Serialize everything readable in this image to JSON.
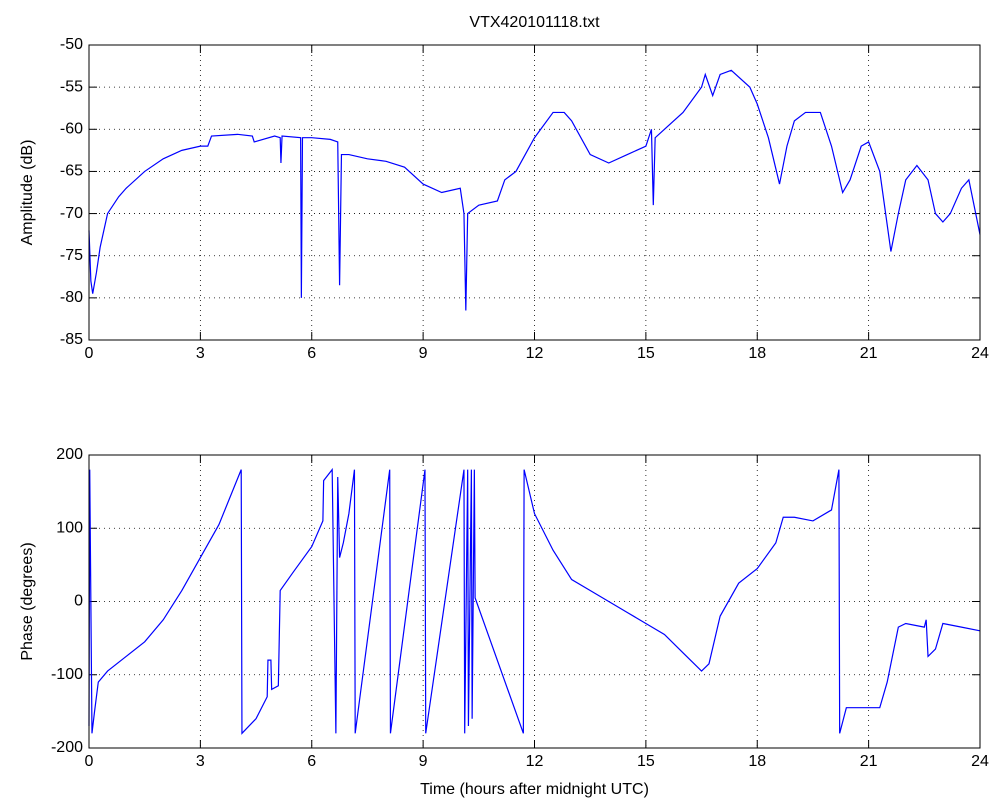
{
  "chart_data": [
    {
      "type": "line",
      "title": "VTX420101118.txt",
      "y_label": "Amplitude (dB)",
      "x": [
        0,
        0.05,
        0.1,
        0.2,
        0.3,
        0.5,
        0.8,
        1,
        1.5,
        2,
        2.5,
        3,
        3.2,
        3.3,
        4,
        4.4,
        4.45,
        5,
        5.15,
        5.17,
        5.2,
        5.7,
        5.72,
        5.75,
        6,
        6.5,
        6.7,
        6.75,
        6.8,
        7,
        7.5,
        8,
        8.5,
        9,
        9.5,
        10,
        10.1,
        10.15,
        10.2,
        10.5,
        11,
        11.2,
        11.5,
        12,
        12.5,
        12.8,
        13,
        13.5,
        14,
        14.5,
        15,
        15.15,
        15.2,
        15.25,
        15.5,
        16,
        16.5,
        16.6,
        16.8,
        17,
        17.3,
        17.8,
        18,
        18.3,
        18.6,
        18.8,
        19,
        19.3,
        19.7,
        20,
        20.3,
        20.5,
        20.8,
        21,
        21.3,
        21.6,
        21.8,
        22,
        22.3,
        22.6,
        22.8,
        23,
        23.2,
        23.5,
        23.7,
        24
      ],
      "series": [
        {
          "color": "#0000ff",
          "values": [
            -72,
            -78,
            -79.5,
            -77,
            -74,
            -70,
            -68,
            -67,
            -65,
            -63.5,
            -62.5,
            -62,
            -62,
            -60.8,
            -60.6,
            -60.8,
            -61.5,
            -60.8,
            -61,
            -64,
            -60.8,
            -61,
            -80,
            -61,
            -61,
            -61.2,
            -61.5,
            -78.5,
            -63,
            -63,
            -63.5,
            -63.8,
            -64.5,
            -66.5,
            -67.5,
            -67,
            -70,
            -81.5,
            -70,
            -69,
            -68.5,
            -66,
            -65,
            -61,
            -58,
            -58,
            -59,
            -63,
            -64,
            -63,
            -62,
            -60,
            -69,
            -61,
            -60,
            -58,
            -55,
            -53.5,
            -56,
            -53.5,
            -53,
            -55,
            -57,
            -61,
            -66.5,
            -62,
            -59,
            -58,
            -58,
            -62,
            -67.5,
            -66,
            -62,
            -61.5,
            -65,
            -74.5,
            -70,
            -66,
            -64.3,
            -66,
            -70,
            -71,
            -70,
            -67,
            -66,
            -72.5
          ]
        }
      ],
      "xlim": [
        0,
        24
      ],
      "xticks": [
        0,
        3,
        6,
        9,
        12,
        15,
        18,
        21,
        24
      ],
      "ylim": [
        -85,
        -50
      ],
      "yticks": [
        -85,
        -80,
        -75,
        -70,
        -65,
        -60,
        -55,
        -50
      ],
      "grid": true
    },
    {
      "type": "line",
      "y_label": "Phase (degrees)",
      "x_label": "Time (hours after midnight UTC)",
      "x": [
        0,
        0.02,
        0.05,
        0.08,
        0.15,
        0.25,
        0.5,
        1,
        1.5,
        2,
        2.5,
        3,
        3.5,
        4.1,
        4.12,
        4.5,
        4.8,
        4.82,
        4.9,
        4.92,
        5.1,
        5.15,
        5.5,
        6,
        6.3,
        6.32,
        6.55,
        6.65,
        6.7,
        6.75,
        6.85,
        7,
        7.15,
        7.17,
        8.1,
        8.12,
        9.05,
        9.07,
        10.1,
        10.12,
        10.2,
        10.22,
        10.3,
        10.32,
        10.38,
        10.4,
        11.7,
        11.72,
        12,
        12.5,
        13,
        13.5,
        14,
        14.5,
        15,
        15.5,
        16,
        16.5,
        16.7,
        17,
        17.5,
        18,
        18.5,
        18.7,
        19,
        19.5,
        20,
        20.2,
        20.22,
        20.4,
        21,
        21.3,
        21.5,
        21.8,
        22,
        22.5,
        22.55,
        22.6,
        22.8,
        23,
        23.5,
        24
      ],
      "series": [
        {
          "color": "#0000ff",
          "values": [
            -170,
            180,
            0,
            -180,
            -150,
            -110,
            -95,
            -75,
            -55,
            -25,
            15,
            60,
            105,
            180,
            -180,
            -160,
            -130,
            -80,
            -80,
            -120,
            -115,
            15,
            40,
            75,
            110,
            165,
            180,
            -180,
            170,
            60,
            80,
            120,
            180,
            -180,
            180,
            -180,
            180,
            -180,
            180,
            -180,
            180,
            -170,
            180,
            -160,
            180,
            5,
            -180,
            180,
            120,
            70,
            30,
            15,
            0,
            -15,
            -30,
            -45,
            -70,
            -95,
            -85,
            -20,
            25,
            45,
            80,
            115,
            115,
            110,
            125,
            180,
            -180,
            -145,
            -145,
            -145,
            -110,
            -35,
            -30,
            -35,
            -25,
            -75,
            -65,
            -30,
            -35,
            -40
          ]
        }
      ],
      "xlim": [
        0,
        24
      ],
      "xticks": [
        0,
        3,
        6,
        9,
        12,
        15,
        18,
        21,
        24
      ],
      "ylim": [
        -200,
        200
      ],
      "yticks": [
        -200,
        -100,
        0,
        100,
        200
      ],
      "grid": true
    }
  ]
}
